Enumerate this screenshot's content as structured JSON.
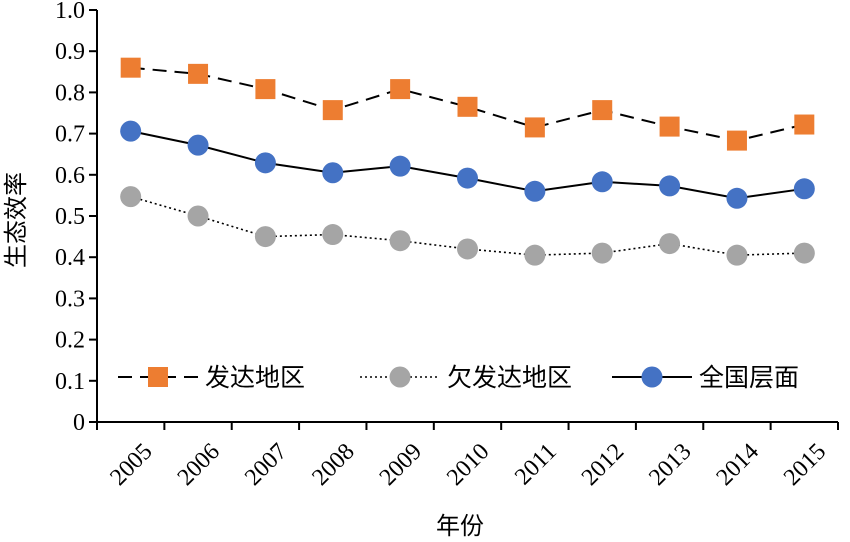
{
  "chart_data": {
    "type": "line",
    "title": "",
    "xlabel": "年份",
    "ylabel": "生态效率",
    "categories": [
      "2005",
      "2006",
      "2007",
      "2008",
      "2009",
      "2010",
      "2011",
      "2012",
      "2013",
      "2014",
      "2015"
    ],
    "yticks": [
      "0",
      "0.1",
      "0.2",
      "0.3",
      "0.4",
      "0.5",
      "0.6",
      "0.7",
      "0.8",
      "0.9",
      "1.0"
    ],
    "ylim": [
      0,
      1.0
    ],
    "grid": false,
    "legend_position": "bottom",
    "series": [
      {
        "name": "发达地区",
        "marker": "square",
        "line_style": "dashed",
        "color": "#ED7D31",
        "values": [
          0.86,
          0.845,
          0.808,
          0.757,
          0.808,
          0.765,
          0.715,
          0.757,
          0.717,
          0.683,
          0.722
        ]
      },
      {
        "name": "欠发达地区",
        "marker": "circle",
        "line_style": "dotted",
        "color": "#A5A5A5",
        "values": [
          0.547,
          0.5,
          0.45,
          0.455,
          0.44,
          0.42,
          0.405,
          0.41,
          0.433,
          0.405,
          0.41
        ]
      },
      {
        "name": "全国层面",
        "marker": "circle",
        "line_style": "solid",
        "color": "#4472C4",
        "values": [
          0.706,
          0.672,
          0.629,
          0.605,
          0.621,
          0.592,
          0.56,
          0.583,
          0.573,
          0.543,
          0.566
        ]
      }
    ]
  }
}
